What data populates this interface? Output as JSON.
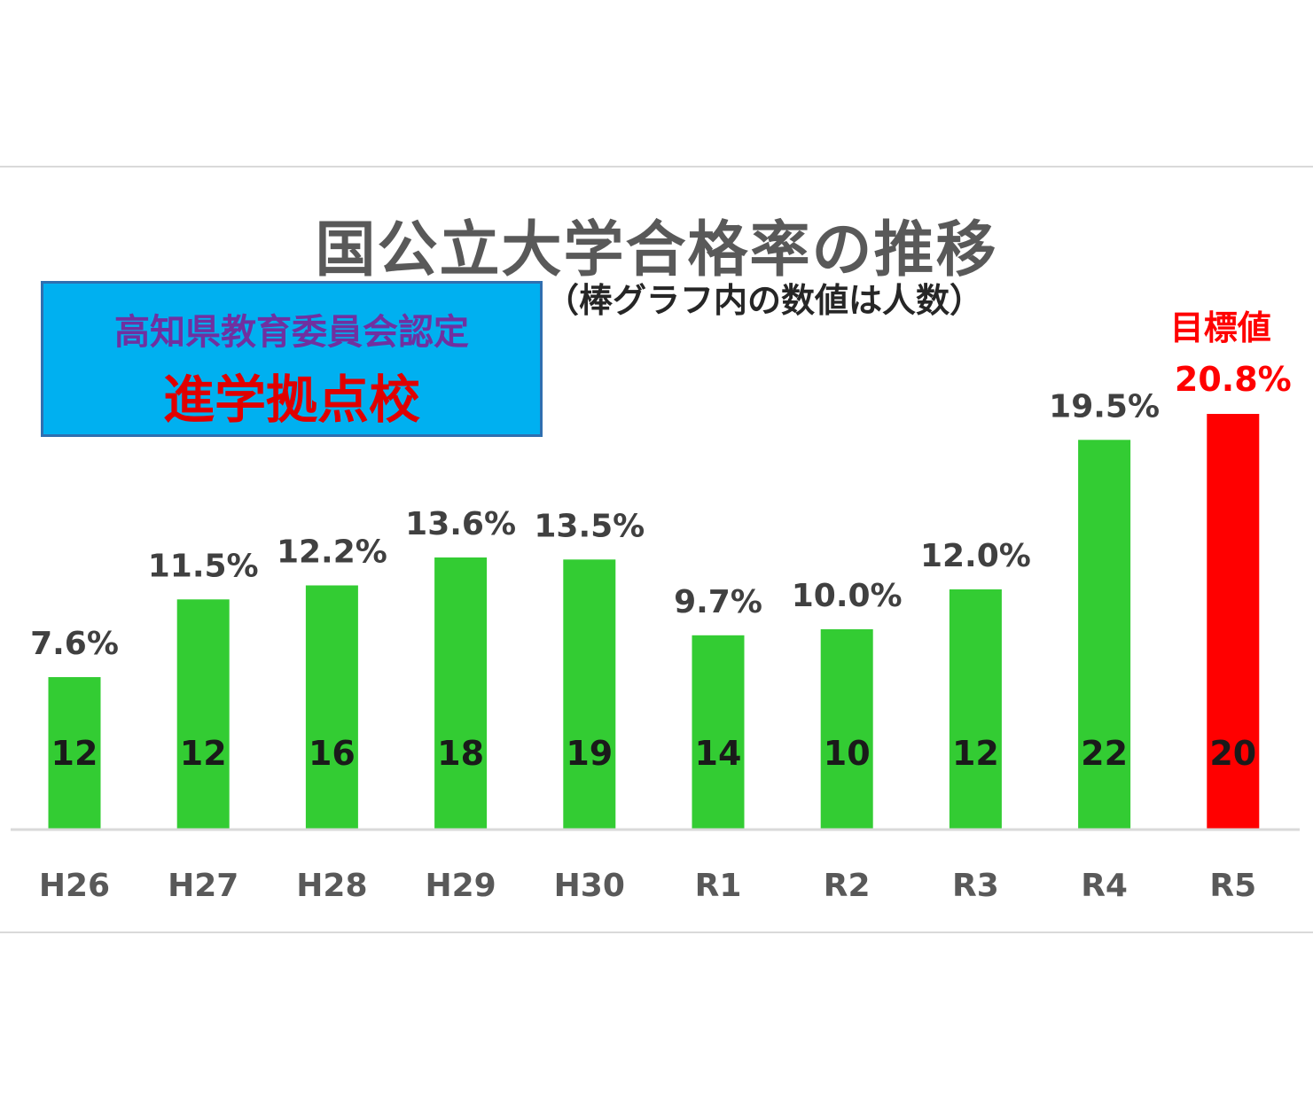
{
  "chart_data": {
    "type": "bar",
    "title": "国公立大学合格率の推移",
    "subtitle": "（棒グラフ内の数値は人数）",
    "categories": [
      "H26",
      "H27",
      "H28",
      "H29",
      "H30",
      "R1",
      "R2",
      "R3",
      "R4",
      "R5"
    ],
    "values": [
      7.6,
      11.5,
      12.2,
      13.6,
      13.5,
      9.7,
      10.0,
      12.0,
      19.5,
      20.8
    ],
    "rate_labels": [
      "7.6%",
      "11.5%",
      "12.2%",
      "13.6%",
      "13.5%",
      "9.7%",
      "10.0%",
      "12.0%",
      "19.5%",
      "20.8%"
    ],
    "counts": [
      "12",
      "12",
      "16",
      "18",
      "19",
      "14",
      "10",
      "12",
      "22",
      "20"
    ],
    "unit": "%",
    "ylim": [
      0,
      22
    ],
    "grid": false,
    "bar_color": "#33cc33",
    "highlight_index": 9,
    "highlight_color": "#ff0000",
    "target_label": "目標値",
    "xlabel": "",
    "ylabel": ""
  },
  "badge": {
    "line1": "高知県教育委員会認定",
    "line2": "進学拠点校"
  }
}
